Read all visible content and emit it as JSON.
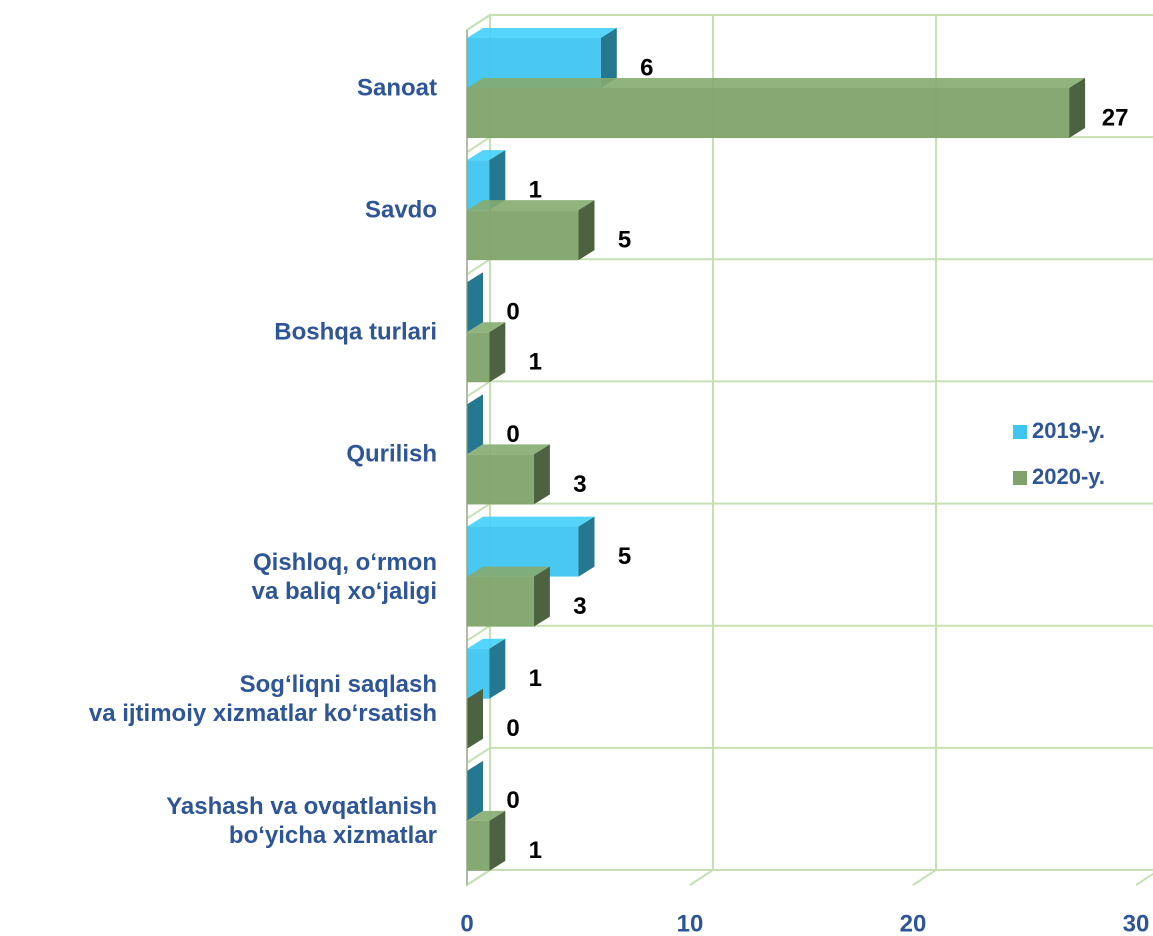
{
  "chart_data": {
    "type": "bar3d",
    "categories": [
      "Sanoat",
      "Savdo",
      "Boshqa turlari",
      "Qurilish",
      "Qishloq, o‘rmon\nva baliq xo‘jaligi",
      "Sog‘liqni saqlash\nva ijtimoiy xizmatlar ko‘rsatish",
      "Yashash va ovqatlanish\nbo‘yicha xizmatlar"
    ],
    "series": [
      {
        "name": "2019-y.",
        "color": "#3fc6f0",
        "values": [
          6,
          1,
          0,
          0,
          5,
          1,
          0
        ]
      },
      {
        "name": "2020-y.",
        "color": "#7fa36a",
        "values": [
          27,
          5,
          1,
          3,
          3,
          0,
          1
        ]
      }
    ],
    "xlim": [
      0,
      30
    ],
    "xticks": [
      0,
      10,
      20,
      30
    ],
    "grid": true,
    "legend": "right"
  }
}
